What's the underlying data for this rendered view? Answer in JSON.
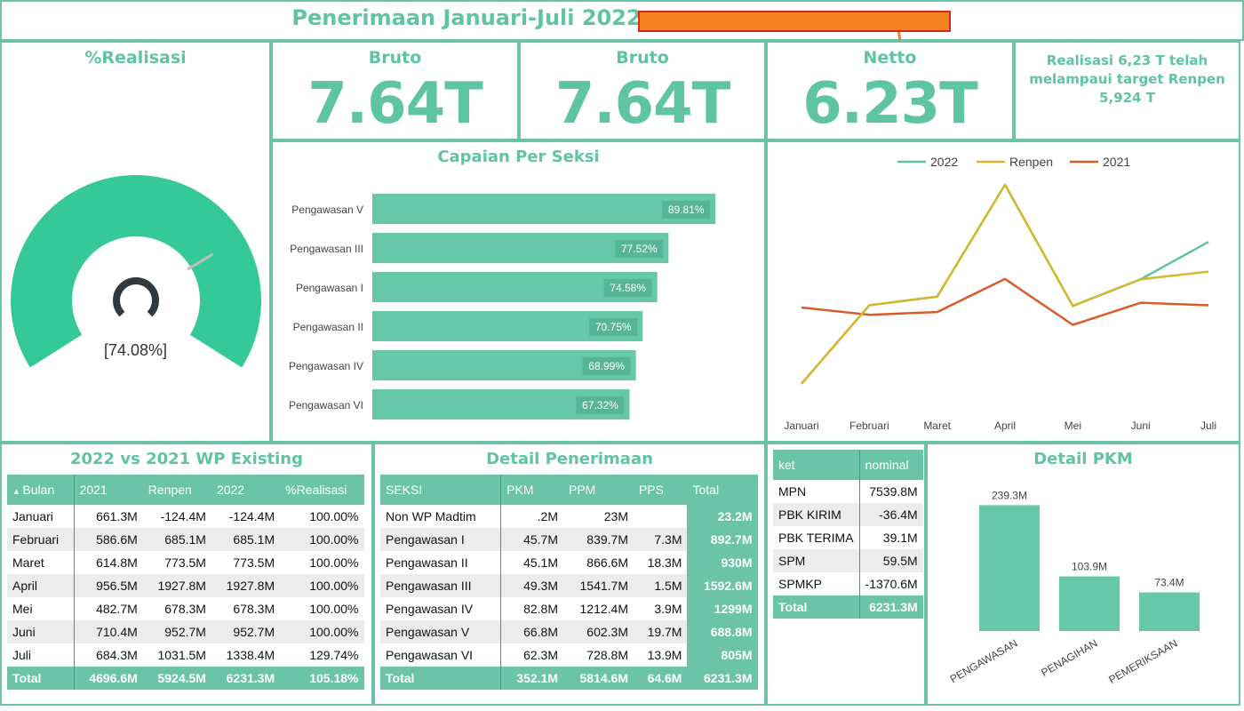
{
  "header": {
    "title": "Penerimaan Januari-Juli 2022"
  },
  "gauge": {
    "title": "%Realisasi",
    "value_pct": 74.08,
    "label": "[74.08%]",
    "color": "#35c99a",
    "needle_color": "#bdbdbd",
    "center_color": "#2f3a3e"
  },
  "kpis": [
    {
      "title": "Bruto",
      "value": "7.64T"
    },
    {
      "title": "Bruto",
      "value": "7.64T"
    },
    {
      "title": "Netto",
      "value": "6.23T"
    }
  ],
  "note": {
    "text": "Realisasi  6,23 T telah melampaui target Renpen 5,924 T"
  },
  "colors": {
    "accent": "#6cc4a8",
    "bar": "#66c7a9",
    "line_2022": "#5fc4a4",
    "line_renpen": "#d8b62e",
    "line_2021": "#d95b2b"
  },
  "section_chart": {
    "title": "Capaian Per Seksi",
    "chart_data": {
      "type": "bar",
      "orientation": "horizontal",
      "categories": [
        "Pengawasan V",
        "Pengawasan III",
        "Pengawasan I",
        "Pengawasan II",
        "Pengawasan IV",
        "Pengawasan VI"
      ],
      "values": [
        89.81,
        77.52,
        74.58,
        70.75,
        68.99,
        67.32
      ],
      "labels": [
        "89.81%",
        "77.52%",
        "74.58%",
        "70.75%",
        "68.99%",
        "67.32%"
      ],
      "xlim": [
        0,
        100
      ]
    }
  },
  "line_chart": {
    "chart_data": {
      "type": "line",
      "categories": [
        "Januari",
        "Februari",
        "Maret",
        "April",
        "Mei",
        "Juni",
        "Juli"
      ],
      "series": [
        {
          "name": "2022",
          "values": [
            -124.4,
            685.1,
            773.5,
            1927.8,
            678.3,
            952.7,
            1338.4
          ]
        },
        {
          "name": "Renpen",
          "values": [
            -124.4,
            685.1,
            773.5,
            1927.8,
            678.3,
            952.7,
            1031.5
          ]
        },
        {
          "name": "2021",
          "values": [
            661.3,
            586.6,
            614.8,
            956.5,
            482.7,
            710.4,
            684.3
          ]
        }
      ],
      "ylim": [
        -200,
        2000
      ],
      "legend": "top"
    }
  },
  "wp_table": {
    "title": "2022 vs 2021 WP Existing",
    "columns": [
      "Bulan",
      "2021",
      "Renpen",
      "2022",
      "%Realisasi"
    ],
    "rows": [
      [
        "Januari",
        "661.3M",
        "-124.4M",
        "-124.4M",
        "100.00%"
      ],
      [
        "Februari",
        "586.6M",
        "685.1M",
        "685.1M",
        "100.00%"
      ],
      [
        "Maret",
        "614.8M",
        "773.5M",
        "773.5M",
        "100.00%"
      ],
      [
        "April",
        "956.5M",
        "1927.8M",
        "1927.8M",
        "100.00%"
      ],
      [
        "Mei",
        "482.7M",
        "678.3M",
        "678.3M",
        "100.00%"
      ],
      [
        "Juni",
        "710.4M",
        "952.7M",
        "952.7M",
        "100.00%"
      ],
      [
        "Juli",
        "684.3M",
        "1031.5M",
        "1338.4M",
        "129.74%"
      ]
    ],
    "total": [
      "Total",
      "4696.6M",
      "5924.5M",
      "6231.3M",
      "105.18%"
    ]
  },
  "detail_table": {
    "title": "Detail Penerimaan",
    "columns": [
      "SEKSI",
      "PKM",
      "PPM",
      "PPS",
      "Total"
    ],
    "rows": [
      [
        "Non WP Madtim",
        ".2M",
        "23M",
        "",
        "23.2M"
      ],
      [
        "Pengawasan I",
        "45.7M",
        "839.7M",
        "7.3M",
        "892.7M"
      ],
      [
        "Pengawasan II",
        "45.1M",
        "866.6M",
        "18.3M",
        "930M"
      ],
      [
        "Pengawasan III",
        "49.3M",
        "1541.7M",
        "1.5M",
        "1592.6M"
      ],
      [
        "Pengawasan IV",
        "82.8M",
        "1212.4M",
        "3.9M",
        "1299M"
      ],
      [
        "Pengawasan V",
        "66.8M",
        "602.3M",
        "19.7M",
        "688.8M"
      ],
      [
        "Pengawasan VI",
        "62.3M",
        "728.8M",
        "13.9M",
        "805M"
      ]
    ],
    "total": [
      "Total",
      "352.1M",
      "5814.6M",
      "64.6M",
      "6231.3M"
    ]
  },
  "ket_table": {
    "columns": [
      "ket",
      "nominal"
    ],
    "rows": [
      [
        "MPN",
        "7539.8M"
      ],
      [
        "PBK KIRIM",
        "-36.4M"
      ],
      [
        "PBK TERIMA",
        "39.1M"
      ],
      [
        "SPM",
        "59.5M"
      ],
      [
        "SPMKP",
        "-1370.6M"
      ]
    ],
    "total": [
      "Total",
      "6231.3M"
    ]
  },
  "pkm_chart": {
    "title": "Detail PKM",
    "chart_data": {
      "type": "bar",
      "categories": [
        "PENGAWASAN",
        "PENAGIHAN",
        "PEMERIKSAAN"
      ],
      "values": [
        239.3,
        103.9,
        73.4
      ],
      "labels": [
        "239.3M",
        "103.9M",
        "73.4M"
      ],
      "ylim": [
        0,
        240
      ]
    }
  }
}
